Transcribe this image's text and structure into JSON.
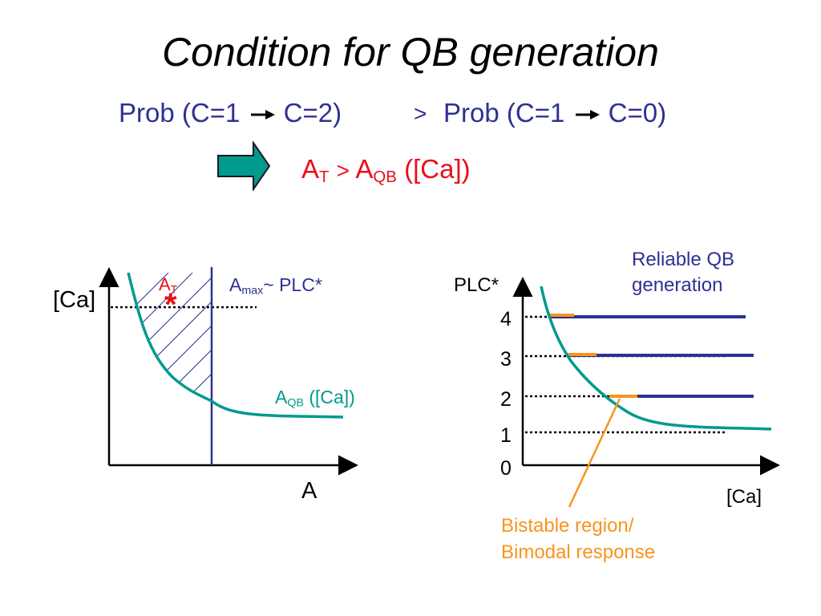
{
  "title": "Condition for QB generation",
  "condition": {
    "prob_left": "Prob (C=1",
    "prob_left_to": "C=2)",
    "gt": ">",
    "prob_right": "Prob (C=1",
    "prob_right_to": "C=0)"
  },
  "implication": {
    "a": "A",
    "t_sub": "T",
    "gt": ">",
    "a2": "A",
    "qb_sub": "QB",
    "ca": "([Ca])"
  },
  "left_plot": {
    "y_label": "[Ca]",
    "x_label": "A",
    "at_label": "A",
    "at_sub": "T",
    "star": "*",
    "amax_label": "A",
    "amax_sub": "max",
    "amax_suffix": "~ PLC*",
    "aqb_label": "A",
    "aqb_sub": "QB",
    "aqb_suffix": " ([Ca])"
  },
  "right_plot": {
    "y_label": "PLC*",
    "x_label": "[Ca]",
    "levels": [
      "4",
      "3",
      "2",
      "1",
      "0"
    ],
    "reliable_line1": "Reliable QB",
    "reliable_line2": "generation",
    "bistable_line1": "Bistable region/",
    "bistable_line2": "Bimodal response"
  },
  "colors": {
    "teal": "#009a8e",
    "blue": "#2e3192",
    "red": "#e8101a",
    "orange": "#f7941d"
  }
}
